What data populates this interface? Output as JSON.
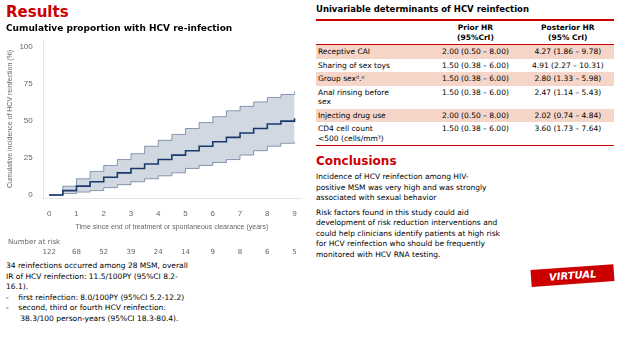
{
  "heading": {
    "text": "Results",
    "color": "#cc0000"
  },
  "chart_data": {
    "type": "line",
    "title": "Cumulative proportion with HCV re-infection",
    "xlabel": "Time since end of treatment or spontaneous clearance (years)",
    "ylabel": "Cumulative incidence of HCV reinfection (%)",
    "x": [
      0,
      0.5,
      1,
      1.5,
      2,
      2.5,
      3,
      3.5,
      4,
      4.5,
      5,
      5.5,
      6,
      6.5,
      7,
      7.5,
      8,
      8.5,
      9
    ],
    "series": [
      {
        "color": "#1a3a6b",
        "values": [
          0,
          3,
          6,
          9,
          12,
          15,
          18,
          21,
          24,
          27,
          30,
          33,
          36,
          39,
          42,
          45,
          48,
          50,
          52
        ],
        "ci_upper": [
          0,
          6,
          11,
          16,
          20,
          24,
          28,
          33,
          37,
          41,
          45,
          49,
          53,
          57,
          60,
          63,
          66,
          68,
          70
        ],
        "ci_lower": [
          0,
          1,
          2,
          3,
          5,
          7,
          9,
          11,
          13,
          15,
          18,
          20,
          22,
          24,
          27,
          30,
          33,
          35,
          36
        ]
      }
    ],
    "line_style": "steps",
    "xlim": [
      -0.2,
      9.2
    ],
    "xticks": [
      0,
      1,
      2,
      3,
      4,
      5,
      6,
      7,
      8,
      9
    ],
    "ylim": [
      -2,
      105
    ],
    "yticks": [
      0,
      25,
      50,
      75,
      100
    ],
    "grid": false,
    "at_risk": {
      "label": "Number at risk",
      "values": [
        122,
        68,
        52,
        39,
        24,
        14,
        9,
        8,
        6,
        5
      ]
    }
  },
  "notes": "34 reinfections occurred among 28 MSM, overall\nIR of HCV reinfection: 11.5/100PY (95%CI 8.2-\n16.1).\n-    first reinfection: 8.0/100PY (95%CI 5.2-12.2)\n-    second, third or fourth HCV reinfection:\n      38.3/100 person-years (95%CI 18.3-80.4).",
  "table": {
    "title": "Univariable determinants of HCV reinfection",
    "headers": [
      "Prior HR\n(95%CrI)",
      "Posterior HR\n(95% CrI)"
    ],
    "rows": [
      [
        "Receptive CAI",
        "2.00 (0.50 – 8.00)",
        "4.27 (1.86 – 9.78)"
      ],
      [
        "Sharing of sex toys",
        "1.50 (0.38 – 6.00)",
        "4.91 (2.27 – 10.31)"
      ],
      [
        "Group sexᵈ․ᵉ",
        "1.50 (0.38 – 6.00)",
        "2.80 (1.33 – 5.98)"
      ],
      [
        "Anal rinsing before\nsex",
        "1.50 (0.38 – 6.00)",
        "2.47 (1.14 – 5.43)"
      ],
      [
        "Injecting drug use",
        "2.00 (0.50 – 8.00)",
        "2.02 (0.74 – 4.84)"
      ],
      [
        "CD4 cell count\n<500 (cells/mm³)",
        "1.50 (0.38 – 6.00)",
        "3.60 (1.73 – 7.64)"
      ]
    ],
    "highlighted_rows": [
      0,
      2,
      4
    ],
    "highlight_color": "#f5d5c8",
    "rule_color": "#cc0000"
  },
  "conclusions": {
    "title": "Conclusions",
    "color": "#cc0000",
    "paragraphs": [
      "Incidence of HCV reinfection among HIV-\npositive MSM was very high and was strongly\nassociated with sexual behavior",
      "Risk factors found in this study could aid\ndevelopment of risk reduction interventions and\ncould help clinicians identify patients at high risk\nfor HCV reinfection who should be frequently\nmonitored with HCV RNA testing."
    ]
  },
  "badge": {
    "text": "VIRTUAL",
    "color": "#cc0000"
  }
}
